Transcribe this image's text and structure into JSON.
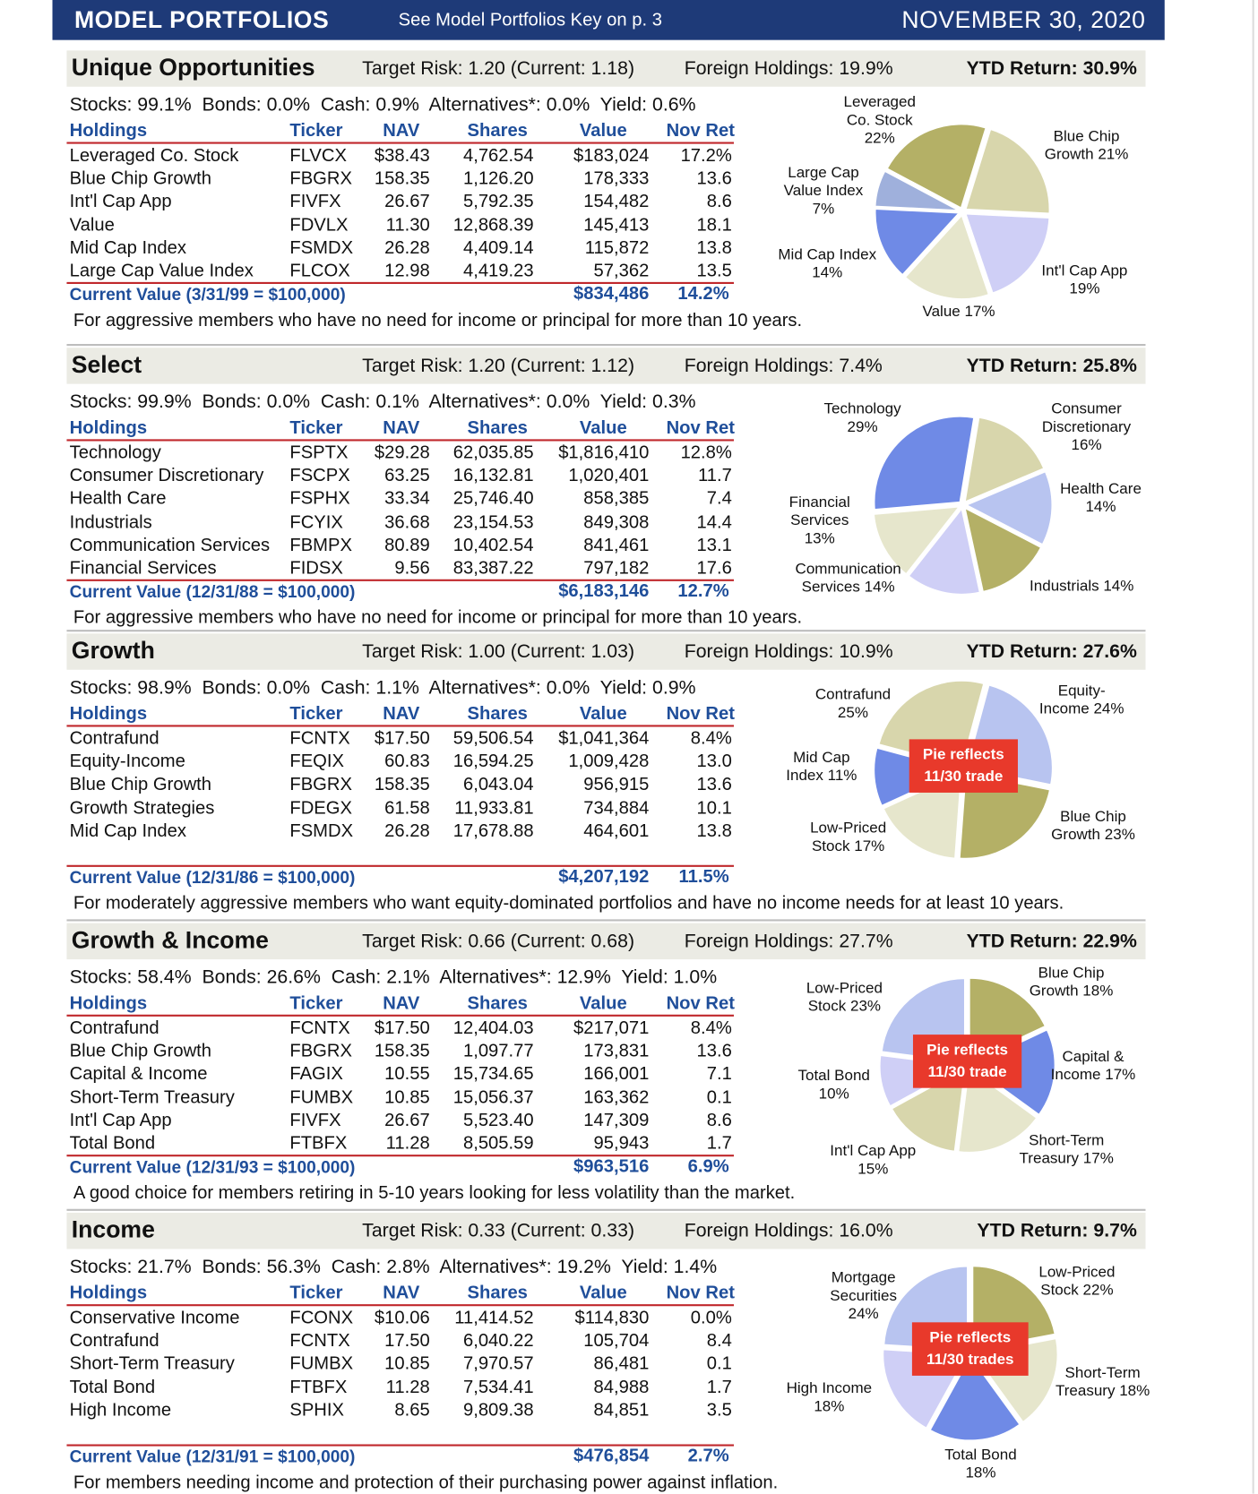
{
  "header": {
    "title": "MODEL PORTFOLIOS",
    "subtitle": "See Model Portfolios Key on p. 3",
    "date": "NOVEMBER 30, 2020"
  },
  "columns": [
    "Holdings",
    "Ticker",
    "NAV",
    "Shares",
    "Value",
    "Nov Ret"
  ],
  "portfolios": [
    {
      "name": "Unique Opportunities",
      "target_risk": "Target Risk: 1.20 (Current: 1.18)",
      "foreign": "Foreign Holdings: 19.9%",
      "ytd": "YTD Return: 30.9%",
      "allocation": "Stocks: 99.1%  Bonds: 0.0%  Cash: 0.9%  Alternatives*: 0.0%  Yield: 0.6%",
      "rows": [
        [
          "Leveraged Co. Stock",
          "FLVCX",
          "$38.43",
          "4,762.54",
          "$183,024",
          "17.2%"
        ],
        [
          "Blue Chip Growth",
          "FBGRX",
          "158.35",
          "1,126.20",
          "178,333",
          "13.6"
        ],
        [
          "Int'l Cap App",
          "FIVFX",
          "26.67",
          "5,792.35",
          "154,482",
          "8.6"
        ],
        [
          "Value",
          "FDVLX",
          "11.30",
          "12,868.39",
          "145,413",
          "18.1"
        ],
        [
          "Mid Cap Index",
          "FSMDX",
          "26.28",
          "4,409.14",
          "115,872",
          "13.8"
        ],
        [
          "Large Cap Value Index",
          "FLCOX",
          "12.98",
          "4,419.23",
          "57,362",
          "13.5"
        ]
      ],
      "total": {
        "label": "Current Value (3/31/99 = $100,000)",
        "value": "$834,486",
        "ret": "14.2%"
      },
      "note": "For aggressive members who have no need for income or principal for more than 10 years.",
      "pie": {
        "slices": [
          {
            "name": "Leveraged Co. Stock",
            "value": 22,
            "value_label": "22%",
            "color": "#b4b066"
          },
          {
            "name": "Blue Chip Growth",
            "value": 21,
            "value_label": "21%",
            "color": "#d8d6ac"
          },
          {
            "name": "Int'l Cap App",
            "value": 19,
            "value_label": "19%",
            "color": "#cfcff6"
          },
          {
            "name": "Value",
            "value": 17,
            "value_label": "17%",
            "color": "#e6e6cc"
          },
          {
            "name": "Mid Cap Index",
            "value": 14,
            "value_label": "14%",
            "color": "#6f8ae6"
          },
          {
            "name": "Large Cap Value Index",
            "value": 7,
            "value_label": "7%",
            "color": "#9fb0dc"
          }
        ]
      }
    },
    {
      "name": "Select",
      "target_risk": "Target Risk: 1.20 (Current: 1.12)",
      "foreign": "Foreign Holdings: 7.4%",
      "ytd": "YTD Return: 25.8%",
      "allocation": "Stocks: 99.9%  Bonds: 0.0%  Cash: 0.1%  Alternatives*: 0.0%  Yield: 0.3%",
      "rows": [
        [
          "Technology",
          "FSPTX",
          "$29.28",
          "62,035.85",
          "$1,816,410",
          "12.8%"
        ],
        [
          "Consumer Discretionary",
          "FSCPX",
          "63.25",
          "16,132.81",
          "1,020,401",
          "11.7"
        ],
        [
          "Health Care",
          "FSPHX",
          "33.34",
          "25,746.40",
          "858,385",
          "7.4"
        ],
        [
          "Industrials",
          "FCYIX",
          "36.68",
          "23,154.53",
          "849,308",
          "14.4"
        ],
        [
          "Communication Services",
          "FBMPX",
          "80.89",
          "10,402.54",
          "841,461",
          "13.1"
        ],
        [
          "Financial Services",
          "FIDSX",
          "9.56",
          "83,387.22",
          "797,182",
          "17.6"
        ]
      ],
      "total": {
        "label": "Current Value (12/31/88 = $100,000)",
        "value": "$6,183,146",
        "ret": "12.7%"
      },
      "note": "For aggressive members who have no need for income or principal for more than 10 years.",
      "pie": {
        "slices": [
          {
            "name": "Technology",
            "value": 29,
            "value_label": "29%",
            "color": "#6f8ae6"
          },
          {
            "name": "Consumer Discretionary",
            "value": 16,
            "value_label": "16%",
            "color": "#d8d6ac"
          },
          {
            "name": "Health Care",
            "value": 14,
            "value_label": "14%",
            "color": "#b8c4f0"
          },
          {
            "name": "Industrials",
            "value": 14,
            "value_label": "14%",
            "color": "#b4b066"
          },
          {
            "name": "Communication Services",
            "value": 14,
            "value_label": "14%",
            "color": "#cfcff6"
          },
          {
            "name": "Financial Services",
            "value": 13,
            "value_label": "13%",
            "color": "#e6e6cc"
          }
        ]
      }
    },
    {
      "name": "Growth",
      "target_risk": "Target Risk: 1.00 (Current: 1.03)",
      "foreign": "Foreign Holdings: 10.9%",
      "ytd": "YTD Return: 27.6%",
      "allocation": "Stocks: 98.9%  Bonds: 0.0%  Cash: 1.1%  Alternatives*: 0.0%  Yield: 0.9%",
      "rows": [
        [
          "Contrafund",
          "FCNTX",
          "$17.50",
          "59,506.54",
          "$1,041,364",
          "8.4%"
        ],
        [
          "Equity-Income",
          "FEQIX",
          "60.83",
          "16,594.25",
          "1,009,428",
          "13.0"
        ],
        [
          "Blue Chip Growth",
          "FBGRX",
          "158.35",
          "6,043.04",
          "956,915",
          "13.6"
        ],
        [
          "Growth Strategies",
          "FDEGX",
          "61.58",
          "11,933.81",
          "734,884",
          "10.1"
        ],
        [
          "Mid Cap Index",
          "FSMDX",
          "26.28",
          "17,678.88",
          "464,601",
          "13.8"
        ]
      ],
      "total": {
        "label": "Current Value (12/31/86 = $100,000)",
        "value": "$4,207,192",
        "ret": "11.5%"
      },
      "note": "For moderately aggressive members who want equity-dominated portfolios and have no income needs for at least 10 years.",
      "pie": {
        "badge": "Pie reflects 11/30 trade",
        "slices": [
          {
            "name": "Contrafund",
            "value": 25,
            "value_label": "25%",
            "color": "#d8d6ac"
          },
          {
            "name": "Equity-Income",
            "value": 24,
            "value_label": "24%",
            "color": "#b8c4f0"
          },
          {
            "name": "Blue Chip Growth",
            "value": 23,
            "value_label": "23%",
            "color": "#b4b066"
          },
          {
            "name": "Low-Priced Stock",
            "value": 17,
            "value_label": "17%",
            "color": "#e6e6cc"
          },
          {
            "name": "Mid Cap Index",
            "value": 11,
            "value_label": "11%",
            "color": "#6f8ae6"
          }
        ]
      }
    },
    {
      "name": "Growth & Income",
      "target_risk": "Target Risk: 0.66 (Current: 0.68)",
      "foreign": "Foreign Holdings: 27.7%",
      "ytd": "YTD Return: 22.9%",
      "allocation": "Stocks: 58.4%  Bonds: 26.6%  Cash: 2.1%  Alternatives*: 12.9%  Yield: 1.0%",
      "rows": [
        [
          "Contrafund",
          "FCNTX",
          "$17.50",
          "12,404.03",
          "$217,071",
          "8.4%"
        ],
        [
          "Blue Chip Growth",
          "FBGRX",
          "158.35",
          "1,097.77",
          "173,831",
          "13.6"
        ],
        [
          "Capital & Income",
          "FAGIX",
          "10.55",
          "15,734.65",
          "166,001",
          "7.1"
        ],
        [
          "Short-Term Treasury",
          "FUMBX",
          "10.85",
          "15,056.37",
          "163,362",
          "0.1"
        ],
        [
          "Int'l Cap App",
          "FIVFX",
          "26.67",
          "5,523.40",
          "147,309",
          "8.6"
        ],
        [
          "Total Bond",
          "FTBFX",
          "11.28",
          "8,505.59",
          "95,943",
          "1.7"
        ]
      ],
      "total": {
        "label": "Current Value (12/31/93 = $100,000)",
        "value": "$963,516",
        "ret": "6.9%"
      },
      "note": "A good choice for members retiring in 5-10 years looking for less volatility than the market.",
      "pie": {
        "badge": "Pie reflects 11/30 trade",
        "slices": [
          {
            "name": "Blue Chip Growth",
            "value": 18,
            "value_label": "18%",
            "color": "#b4b066"
          },
          {
            "name": "Capital & Income",
            "value": 17,
            "value_label": "17%",
            "color": "#6f8ae6"
          },
          {
            "name": "Short-Term Treasury",
            "value": 17,
            "value_label": "17%",
            "color": "#e6e6cc"
          },
          {
            "name": "Int'l Cap App",
            "value": 15,
            "value_label": "15%",
            "color": "#d8d6ac"
          },
          {
            "name": "Total Bond",
            "value": 10,
            "value_label": "10%",
            "color": "#cfcff6"
          },
          {
            "name": "Low-Priced Stock",
            "value": 23,
            "value_label": "23%",
            "color": "#b8c4f0"
          }
        ]
      }
    },
    {
      "name": "Income",
      "target_risk": "Target Risk: 0.33 (Current: 0.33)",
      "foreign": "Foreign Holdings: 16.0%",
      "ytd": "YTD Return: 9.7%",
      "allocation": "Stocks: 21.7%  Bonds: 56.3%  Cash: 2.8%  Alternatives*: 19.2%  Yield: 1.4%",
      "rows": [
        [
          "Conservative Income",
          "FCONX",
          "$10.06",
          "11,414.52",
          "$114,830",
          "0.0%"
        ],
        [
          "Contrafund",
          "FCNTX",
          "17.50",
          "6,040.22",
          "105,704",
          "8.4"
        ],
        [
          "Short-Term Treasury",
          "FUMBX",
          "10.85",
          "7,970.57",
          "86,481",
          "0.1"
        ],
        [
          "Total Bond",
          "FTBFX",
          "11.28",
          "7,534.41",
          "84,988",
          "1.7"
        ],
        [
          "High Income",
          "SPHIX",
          "8.65",
          "9,809.38",
          "84,851",
          "3.5"
        ]
      ],
      "total": {
        "label": "Current Value (12/31/91 = $100,000)",
        "value": "$476,854",
        "ret": "2.7%"
      },
      "note": "For members needing income and protection of their purchasing power against inflation.",
      "pie": {
        "badge": "Pie reflects 11/30 trades",
        "slices": [
          {
            "name": "Low-Priced Stock",
            "value": 22,
            "value_label": "22%",
            "color": "#b4b066"
          },
          {
            "name": "Short-Term Treasury",
            "value": 18,
            "value_label": "18%",
            "color": "#e6e6cc"
          },
          {
            "name": "Total Bond",
            "value": 18,
            "value_label": "18%",
            "color": "#6f8ae6"
          },
          {
            "name": "High Income",
            "value": 18,
            "value_label": "18%",
            "color": "#cfcff6"
          },
          {
            "name": "Mortgage Securities",
            "value": 24,
            "value_label": "24%",
            "color": "#b8c4f0"
          }
        ]
      }
    }
  ]
}
